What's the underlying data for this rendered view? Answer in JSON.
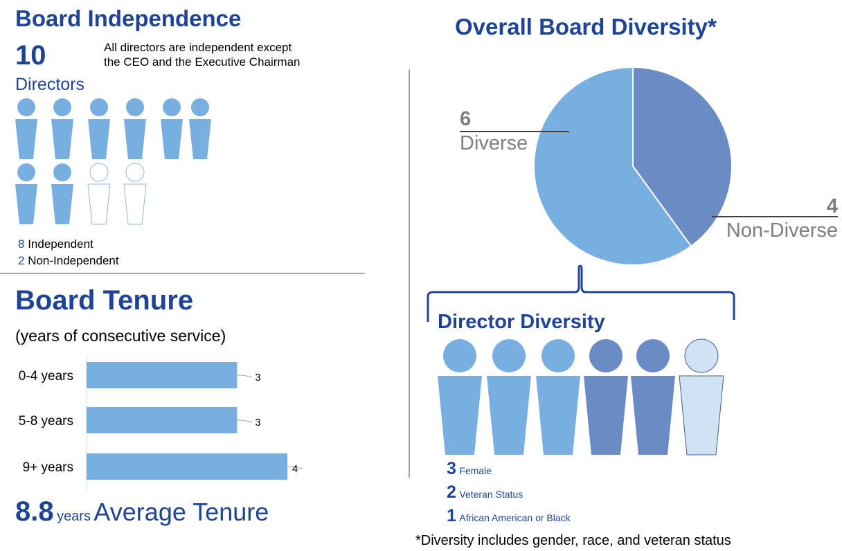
{
  "colors": {
    "navy": "#1f4497",
    "light_blue": "#78afe0",
    "slate_blue": "#6b8bc4",
    "pale_blue": "#cfe2f6",
    "outline_blue": "#8db8e3",
    "divider": "#a6a6a6"
  },
  "independence": {
    "title": "Board Independence",
    "count": "10",
    "count_label": "Directors",
    "note_line1": "All directors are independent except",
    "note_line2": "the CEO and the Executive Chairman",
    "figures": [
      "independent",
      "independent",
      "independent",
      "independent",
      "independent",
      "independent",
      "independent",
      "independent",
      "non-independent",
      "non-independent"
    ],
    "legend": [
      {
        "num": "8",
        "label": "Independent"
      },
      {
        "num": "2",
        "label": "Non-Independent"
      }
    ]
  },
  "tenure": {
    "title": "Board Tenure",
    "subtitle": "(years of consecutive service)",
    "average_value": "8.8",
    "average_unit": "years",
    "average_label": "Average Tenure"
  },
  "diversity": {
    "title": "Overall Board Diversity*",
    "diverse_count": "6",
    "diverse_label": "Diverse",
    "non_diverse_count": "4",
    "non_diverse_label": "Non-Diverse",
    "director_title": "Director Diversity",
    "figures": [
      "female",
      "female",
      "female",
      "veteran",
      "veteran",
      "african-american"
    ],
    "legend": [
      {
        "num": "3",
        "label": "Female"
      },
      {
        "num": "2",
        "label": "Veteran Status"
      },
      {
        "num": "1",
        "label": "African American or Black"
      }
    ],
    "footnote": "*Diversity includes gender, race, and veteran status"
  },
  "chart_data": [
    {
      "type": "bar",
      "orientation": "horizontal",
      "title": "Board Tenure",
      "categories": [
        "0-4 years",
        "5-8 years",
        "9+ years"
      ],
      "values": [
        3,
        3,
        4
      ],
      "xlim": [
        0,
        4
      ],
      "grid": false
    },
    {
      "type": "pie",
      "title": "Overall Board Diversity*",
      "labels": [
        "Non-Diverse",
        "Diverse"
      ],
      "values": [
        4,
        6
      ]
    }
  ]
}
